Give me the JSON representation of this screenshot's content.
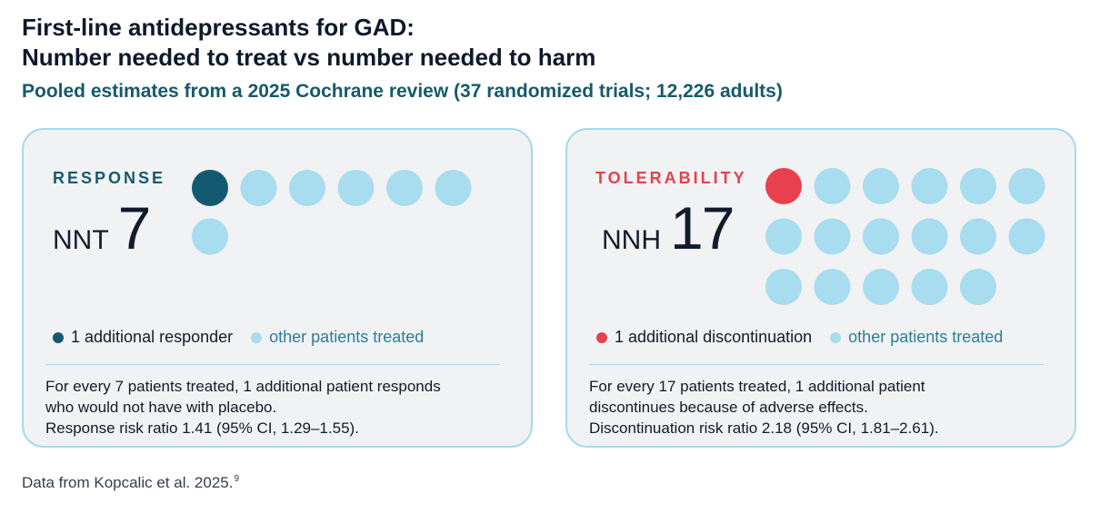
{
  "title_line1": "First-line antidepressants for GAD:",
  "title_line2": "Number needed to treat vs number needed to harm",
  "subtitle": "Pooled estimates from a 2025 Cochrane review (37 randomized trials; 12,226 adults)",
  "colors": {
    "response": "#135a70",
    "harm": "#e8404f",
    "other": "#a8dcef",
    "panel_bg": "#f1f2f3",
    "panel_border": "#a8d9ec"
  },
  "chart_data": [
    {
      "type": "icon-array",
      "label": "RESPONSE",
      "stat_abbr": "NNT",
      "stat_value": 7,
      "highlighted": 1,
      "total": 7,
      "legend": {
        "highlight": "1 additional responder",
        "other": "other patients treated"
      },
      "note": [
        "For every 7 patients treated, 1 additional patient responds",
        "who would not have with placebo.",
        "Response risk ratio 1.41 (95% CI, 1.29–1.55)."
      ]
    },
    {
      "type": "icon-array",
      "label": "TOLERABILITY",
      "stat_abbr": "NNH",
      "stat_value": 17,
      "highlighted": 1,
      "total": 17,
      "legend": {
        "highlight": "1 additional discontinuation",
        "other": "other patients treated"
      },
      "note": [
        "For every 17 patients treated, 1 additional patient",
        "discontinues because of adverse effects.",
        "Discontinuation risk ratio 2.18 (95% CI, 1.81–2.61)."
      ]
    }
  ],
  "source": "Data from Kopcalic et al. 2025.",
  "source_ref": "9"
}
